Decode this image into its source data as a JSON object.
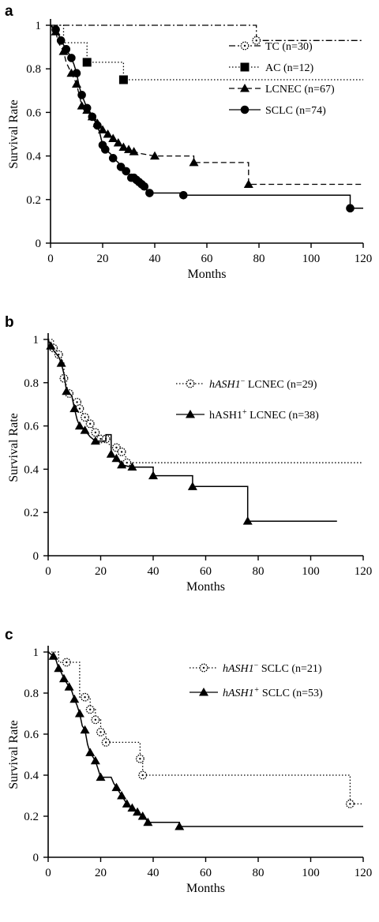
{
  "chart_data": [
    {
      "panel_label": "a",
      "type": "line",
      "xlabel": "Months",
      "ylabel": "Survival Rate",
      "xlim": [
        0,
        120
      ],
      "ylim": [
        0,
        1
      ],
      "xticks": [
        "0",
        "20",
        "40",
        "60",
        "80",
        "100",
        "120"
      ],
      "yticks": [
        "0",
        "0.2",
        "0.4",
        "0.6",
        "0.8",
        "1"
      ],
      "legend_position": "right",
      "series": [
        {
          "name": "TC (n=30)",
          "style": "dashdot",
          "marker": "dotcircle",
          "x": [
            0,
            79,
            79,
            120
          ],
          "y": [
            1.0,
            1.0,
            0.93,
            0.93
          ],
          "markers_x": [
            79
          ],
          "markers_y": [
            0.93
          ]
        },
        {
          "name": "AC (n=12)",
          "style": "dotted",
          "marker": "square",
          "x": [
            0,
            5,
            5,
            14,
            14,
            28,
            28,
            120
          ],
          "y": [
            1.0,
            1.0,
            0.92,
            0.92,
            0.83,
            0.83,
            0.75,
            0.75
          ],
          "markers_x": [
            14,
            28
          ],
          "markers_y": [
            0.83,
            0.75
          ]
        },
        {
          "name": "LCNEC (n=67)",
          "style": "dashed",
          "marker": "triangle",
          "x": [
            0,
            2,
            3,
            5,
            6,
            8,
            10,
            12,
            14,
            16,
            18,
            20,
            22,
            24,
            26,
            28,
            30,
            32,
            35,
            40,
            55,
            55,
            76,
            76,
            120
          ],
          "y": [
            1.0,
            0.97,
            0.92,
            0.88,
            0.83,
            0.78,
            0.73,
            0.63,
            0.61,
            0.58,
            0.55,
            0.52,
            0.5,
            0.48,
            0.46,
            0.44,
            0.43,
            0.42,
            0.41,
            0.4,
            0.4,
            0.37,
            0.37,
            0.27,
            0.27
          ],
          "markers_x": [
            2,
            5,
            8,
            10,
            12,
            14,
            16,
            18,
            20,
            22,
            24,
            26,
            28,
            30,
            32,
            40,
            55,
            76
          ],
          "markers_y": [
            0.97,
            0.88,
            0.78,
            0.73,
            0.63,
            0.61,
            0.58,
            0.55,
            0.52,
            0.5,
            0.48,
            0.46,
            0.44,
            0.43,
            0.42,
            0.4,
            0.37,
            0.27
          ]
        },
        {
          "name": "SCLC (n=74)",
          "style": "solid",
          "marker": "circle",
          "x": [
            0,
            1,
            2,
            3,
            4,
            5,
            6,
            7,
            8,
            9,
            10,
            11,
            12,
            13,
            14,
            15,
            16,
            17,
            18,
            19,
            20,
            21,
            22,
            23,
            24,
            25,
            26,
            27,
            28,
            29,
            30,
            31,
            32,
            33,
            34,
            35,
            36,
            37,
            38,
            51,
            51,
            115,
            115,
            120
          ],
          "y": [
            1.0,
            0.99,
            0.98,
            0.96,
            0.93,
            0.91,
            0.89,
            0.87,
            0.85,
            0.82,
            0.78,
            0.72,
            0.68,
            0.65,
            0.62,
            0.6,
            0.58,
            0.56,
            0.54,
            0.5,
            0.45,
            0.43,
            0.42,
            0.41,
            0.39,
            0.38,
            0.37,
            0.35,
            0.34,
            0.33,
            0.32,
            0.3,
            0.3,
            0.29,
            0.28,
            0.27,
            0.26,
            0.24,
            0.23,
            0.23,
            0.22,
            0.22,
            0.16,
            0.16
          ],
          "markers_x": [
            2,
            4,
            6,
            8,
            10,
            12,
            14,
            16,
            18,
            20,
            21,
            24,
            27,
            29,
            31,
            32,
            33,
            34,
            35,
            36,
            38,
            51,
            115
          ],
          "markers_y": [
            0.98,
            0.93,
            0.89,
            0.85,
            0.78,
            0.68,
            0.62,
            0.58,
            0.54,
            0.45,
            0.43,
            0.39,
            0.35,
            0.33,
            0.3,
            0.3,
            0.29,
            0.28,
            0.27,
            0.26,
            0.23,
            0.22,
            0.16
          ]
        }
      ]
    },
    {
      "panel_label": "b",
      "type": "line",
      "xlabel": "Months",
      "ylabel": "Survival Rate",
      "xlim": [
        0,
        120
      ],
      "ylim": [
        0,
        1
      ],
      "xticks": [
        "0",
        "20",
        "40",
        "60",
        "80",
        "100",
        "120"
      ],
      "yticks": [
        "0",
        "0.2",
        "0.4",
        "0.6",
        "0.8",
        "1"
      ],
      "legend_position": "right",
      "series": [
        {
          "name_parts": [
            {
              "text": "hASH1",
              "italic": true
            },
            {
              "text": "−",
              "sup": true
            },
            {
              "text": " LCNEC (n=29)"
            }
          ],
          "style": "dotted",
          "marker": "dotcircle",
          "x": [
            0,
            2,
            2,
            4,
            6,
            6,
            8,
            10,
            11,
            12,
            14,
            15,
            16,
            18,
            20,
            22,
            24,
            26,
            28,
            30,
            30,
            120
          ],
          "y": [
            1.0,
            1.0,
            0.96,
            0.93,
            0.89,
            0.82,
            0.75,
            0.71,
            0.71,
            0.68,
            0.64,
            0.61,
            0.61,
            0.57,
            0.54,
            0.54,
            0.5,
            0.5,
            0.48,
            0.45,
            0.43,
            0.43
          ],
          "markers_x": [
            2,
            4,
            6,
            8,
            11,
            12,
            14,
            16,
            18,
            20,
            22,
            26,
            28,
            30
          ],
          "markers_y": [
            0.96,
            0.93,
            0.82,
            0.75,
            0.71,
            0.68,
            0.64,
            0.61,
            0.57,
            0.54,
            0.54,
            0.5,
            0.48,
            0.43
          ]
        },
        {
          "name_parts": [
            {
              "text": "hASH1"
            },
            {
              "text": "+",
              "sup": true
            },
            {
              "text": " LCNEC (n=38)"
            }
          ],
          "style": "solid",
          "marker": "triangle",
          "x": [
            0,
            1,
            2,
            4,
            5,
            6,
            7,
            9,
            10,
            11,
            12,
            14,
            16,
            18,
            22,
            22,
            24,
            24,
            26,
            28,
            32,
            40,
            40,
            55,
            55,
            76,
            76,
            110
          ],
          "y": [
            1.0,
            0.97,
            0.95,
            0.92,
            0.89,
            0.84,
            0.76,
            0.74,
            0.68,
            0.63,
            0.6,
            0.58,
            0.55,
            0.53,
            0.53,
            0.56,
            0.56,
            0.47,
            0.45,
            0.42,
            0.41,
            0.41,
            0.37,
            0.37,
            0.32,
            0.32,
            0.16,
            0.16
          ],
          "markers_x": [
            1,
            5,
            7,
            10,
            12,
            14,
            18,
            24,
            26,
            28,
            32,
            40,
            55,
            76
          ],
          "markers_y": [
            0.97,
            0.89,
            0.76,
            0.68,
            0.6,
            0.58,
            0.53,
            0.47,
            0.45,
            0.42,
            0.41,
            0.37,
            0.32,
            0.16
          ]
        }
      ]
    },
    {
      "panel_label": "c",
      "type": "line",
      "xlabel": "Months",
      "ylabel": "Survival Rate",
      "xlim": [
        0,
        120
      ],
      "ylim": [
        0,
        1
      ],
      "xticks": [
        "0",
        "20",
        "40",
        "60",
        "80",
        "100",
        "120"
      ],
      "yticks": [
        "0",
        "0.2",
        "0.4",
        "0.6",
        "0.8",
        "1"
      ],
      "legend_position": "right",
      "series": [
        {
          "name_parts": [
            {
              "text": "hASH1",
              "italic": true
            },
            {
              "text": "−",
              "sup": true
            },
            {
              "text": " SCLC (n=21)"
            }
          ],
          "style": "dotted",
          "marker": "dotcircle",
          "x": [
            0,
            4,
            4,
            7,
            7,
            12,
            12,
            14,
            16,
            16,
            18,
            18,
            20,
            20,
            22,
            22,
            35,
            35,
            36,
            36,
            115,
            115,
            120
          ],
          "y": [
            1.0,
            1.0,
            0.95,
            0.95,
            0.95,
            0.95,
            0.78,
            0.78,
            0.78,
            0.72,
            0.72,
            0.67,
            0.67,
            0.61,
            0.61,
            0.56,
            0.56,
            0.48,
            0.48,
            0.4,
            0.4,
            0.26,
            0.26
          ],
          "markers_x": [
            7,
            14,
            16,
            18,
            20,
            22,
            35,
            36,
            115
          ],
          "markers_y": [
            0.95,
            0.78,
            0.72,
            0.67,
            0.61,
            0.56,
            0.48,
            0.4,
            0.26
          ]
        },
        {
          "name_parts": [
            {
              "text": "hASH1",
              "italic": true
            },
            {
              "text": "+",
              "sup": true,
              "italic": true
            },
            {
              "text": " SCLC (n=53)"
            }
          ],
          "style": "solid",
          "marker": "triangle",
          "x": [
            0,
            2,
            3,
            4,
            5,
            6,
            7,
            8,
            9,
            10,
            11,
            12,
            13,
            14,
            15,
            16,
            17,
            18,
            19,
            20,
            24,
            25,
            26,
            27,
            28,
            29,
            30,
            31,
            32,
            33,
            34,
            35,
            36,
            37,
            38,
            50,
            50,
            120
          ],
          "y": [
            1.0,
            0.98,
            0.96,
            0.92,
            0.9,
            0.87,
            0.85,
            0.83,
            0.81,
            0.77,
            0.74,
            0.7,
            0.64,
            0.62,
            0.55,
            0.51,
            0.49,
            0.47,
            0.43,
            0.39,
            0.39,
            0.36,
            0.34,
            0.32,
            0.3,
            0.28,
            0.26,
            0.25,
            0.24,
            0.23,
            0.22,
            0.21,
            0.2,
            0.19,
            0.17,
            0.17,
            0.15,
            0.15
          ],
          "markers_x": [
            2,
            4,
            6,
            8,
            10,
            12,
            14,
            16,
            18,
            20,
            26,
            28,
            30,
            32,
            34,
            36,
            38,
            50
          ],
          "markers_y": [
            0.98,
            0.92,
            0.87,
            0.83,
            0.77,
            0.7,
            0.62,
            0.51,
            0.47,
            0.39,
            0.34,
            0.3,
            0.26,
            0.24,
            0.22,
            0.2,
            0.17,
            0.15
          ]
        }
      ]
    }
  ]
}
